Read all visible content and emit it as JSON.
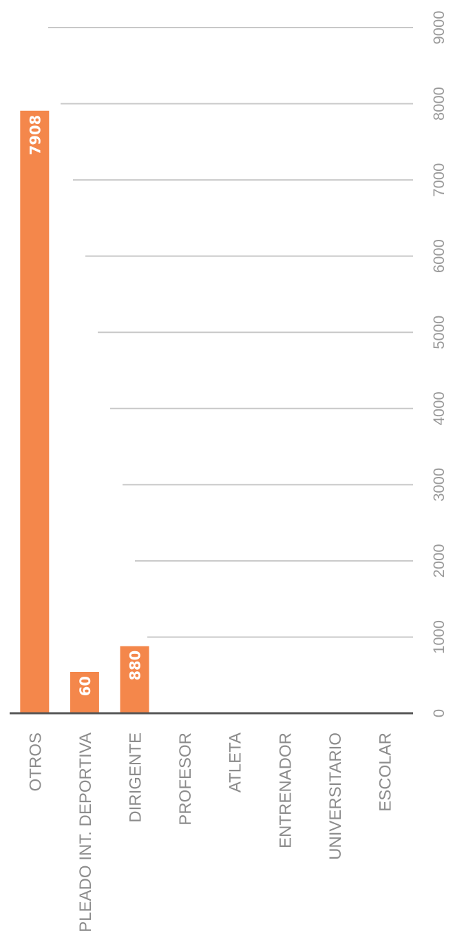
{
  "chart_data": {
    "type": "bar",
    "orientation": "horizontal",
    "categories": [
      "OTROS",
      "EMPLEADO INT. DEPORTIVA",
      "DIRIGENTE",
      "PROFESOR",
      "ATLETA",
      "ENTRENADOR",
      "UNIVERSITARIO",
      "ESCOLAR"
    ],
    "values": [
      7908,
      60,
      880,
      0,
      0,
      0,
      0,
      0
    ],
    "data_labels": [
      "7908",
      "60",
      "880",
      "",
      "",
      "",
      "",
      ""
    ],
    "ticks": [
      0,
      1000,
      2000,
      3000,
      4000,
      5000,
      6000,
      7000,
      8000,
      9000
    ],
    "tick_labels": [
      "0",
      "1000",
      "2000",
      "3000",
      "4000",
      "5000",
      "6000",
      "7000",
      "8000",
      "9000"
    ],
    "xlim": [
      0,
      9000
    ],
    "grid": true,
    "legend": "none",
    "bar_color": "#f4874b",
    "title": "",
    "xlabel": "",
    "ylabel": ""
  }
}
